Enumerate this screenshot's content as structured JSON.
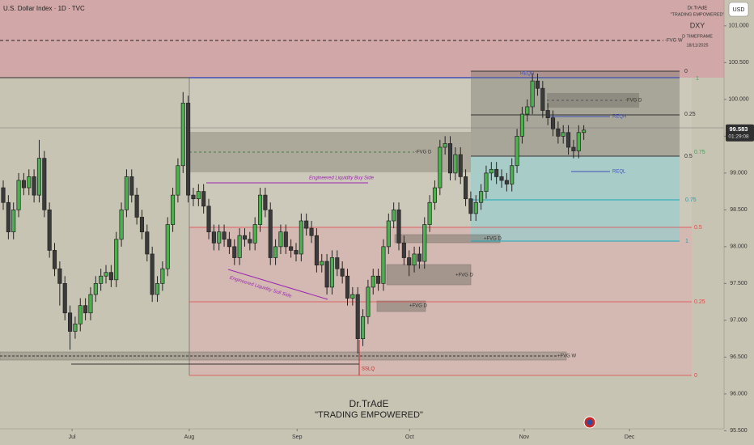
{
  "header": {
    "symbol": "U.S. Dollar Index · 1D · TVC",
    "currency": "USD"
  },
  "watermark": {
    "top": [
      "Dr.TrAdE",
      "\"TRADING EMPOWERED\"",
      "DXY",
      "D TIMEFRAME",
      "18/11/2025"
    ],
    "bottom": [
      "Dr.TrAdE",
      "\"TRADING EMPOWERED\""
    ]
  },
  "chart_data": {
    "type": "candlestick",
    "up_color": "#4caf50",
    "down_color": "#3b3b3b",
    "grid": false,
    "series": [
      {
        "open": [
          98.8,
          98.6,
          98.2,
          98.5,
          98.9,
          98.8,
          98.95,
          98.7,
          99.2,
          98.5,
          97.95,
          97.7,
          97.5,
          97.1,
          96.85,
          96.95,
          97.2,
          97.1,
          97.35,
          97.5,
          97.6,
          97.65,
          97.55,
          98.1,
          98.5,
          98.95,
          98.7,
          98.4,
          98.2,
          97.9,
          97.35,
          97.5,
          97.7,
          98.3,
          98.7,
          99.1,
          99.95,
          98.7,
          98.65,
          98.75,
          98.55,
          98.2,
          98.05,
          98.2,
          98.1,
          98.0,
          97.85,
          98.15,
          98.1,
          98.05,
          98.3,
          98.7,
          98.5,
          97.85,
          98.0,
          98.2,
          98.0,
          97.95,
          97.9,
          98.35,
          98.25,
          98.15,
          97.75,
          97.8,
          97.45,
          97.85,
          97.7,
          97.6,
          97.3,
          97.35,
          96.75,
          97.05,
          97.45,
          97.6,
          97.5,
          98.0,
          98.35,
          98.5,
          98.05,
          97.85,
          97.75,
          97.9,
          97.8,
          98.3,
          98.6,
          98.8,
          99.35,
          99.4,
          99.0,
          99.25,
          98.95,
          98.65,
          98.45,
          98.6,
          98.75,
          99.0,
          99.05,
          98.95,
          98.9,
          98.85,
          99.1,
          99.5,
          99.8,
          99.9,
          100.25,
          100.15,
          99.85,
          99.75,
          99.6,
          99.5,
          99.55,
          99.35,
          99.3,
          99.55
        ],
        "high": [
          98.9,
          98.7,
          98.6,
          99.0,
          99.0,
          99.05,
          99.05,
          99.45,
          99.3,
          98.6,
          98.05,
          97.8,
          97.6,
          97.2,
          97.05,
          97.3,
          97.3,
          97.45,
          97.6,
          97.7,
          97.75,
          97.75,
          98.2,
          98.6,
          99.05,
          99.05,
          98.8,
          98.5,
          98.3,
          98.0,
          97.6,
          97.8,
          98.4,
          98.8,
          99.2,
          100.1,
          100.05,
          98.8,
          98.85,
          98.85,
          98.65,
          98.3,
          98.3,
          98.3,
          98.2,
          98.1,
          98.25,
          98.25,
          98.2,
          98.4,
          98.8,
          98.8,
          98.6,
          98.1,
          98.3,
          98.3,
          98.1,
          98.05,
          98.45,
          98.45,
          98.35,
          98.25,
          97.9,
          97.9,
          97.95,
          97.95,
          97.8,
          97.7,
          97.45,
          97.45,
          97.15,
          97.55,
          97.7,
          97.7,
          98.1,
          98.45,
          98.6,
          98.6,
          98.15,
          97.95,
          98.0,
          98.0,
          98.4,
          98.7,
          98.9,
          99.45,
          99.5,
          99.5,
          99.35,
          99.35,
          99.05,
          98.75,
          98.7,
          98.85,
          99.1,
          99.15,
          99.15,
          99.05,
          99.0,
          99.2,
          99.6,
          99.9,
          100.0,
          100.35,
          100.35,
          100.25,
          99.95,
          99.85,
          99.7,
          99.65,
          99.65,
          99.45,
          99.65,
          99.65
        ],
        "low": [
          98.5,
          98.1,
          98.1,
          98.4,
          98.7,
          98.7,
          98.6,
          98.6,
          98.4,
          97.85,
          97.6,
          97.2,
          97.0,
          96.6,
          96.75,
          96.85,
          97.0,
          97.0,
          97.25,
          97.4,
          97.5,
          97.45,
          97.45,
          98.0,
          98.4,
          98.6,
          98.3,
          98.1,
          97.8,
          97.25,
          97.25,
          97.4,
          97.6,
          98.2,
          98.6,
          99.0,
          98.6,
          98.55,
          98.55,
          98.45,
          98.1,
          97.95,
          97.95,
          98.0,
          97.9,
          97.75,
          97.75,
          98.0,
          97.95,
          97.95,
          98.2,
          98.4,
          97.75,
          97.75,
          97.9,
          97.9,
          97.85,
          97.8,
          97.8,
          98.15,
          98.05,
          97.65,
          97.65,
          97.35,
          97.35,
          97.6,
          97.5,
          97.2,
          97.2,
          96.55,
          96.65,
          96.95,
          97.35,
          97.4,
          97.4,
          97.9,
          98.25,
          97.95,
          97.75,
          97.6,
          97.65,
          97.7,
          97.7,
          98.2,
          98.5,
          98.7,
          99.25,
          98.9,
          98.9,
          98.85,
          98.55,
          98.35,
          98.35,
          98.5,
          98.65,
          98.9,
          98.85,
          98.8,
          98.75,
          98.75,
          99.0,
          99.4,
          99.7,
          99.8,
          100.05,
          99.75,
          99.65,
          99.5,
          99.4,
          99.4,
          99.25,
          99.2,
          99.2,
          99.45
        ],
        "close": [
          98.6,
          98.2,
          98.5,
          98.9,
          98.8,
          98.95,
          98.7,
          99.2,
          98.5,
          97.95,
          97.7,
          97.5,
          97.1,
          96.85,
          96.95,
          97.2,
          97.1,
          97.35,
          97.5,
          97.6,
          97.65,
          97.55,
          98.1,
          98.5,
          98.95,
          98.7,
          98.4,
          98.2,
          97.9,
          97.35,
          97.5,
          97.7,
          98.3,
          98.7,
          99.1,
          99.95,
          98.7,
          98.65,
          98.75,
          98.55,
          98.2,
          98.05,
          98.2,
          98.1,
          98.0,
          97.85,
          98.15,
          98.1,
          98.05,
          98.3,
          98.7,
          98.5,
          97.85,
          98.0,
          98.2,
          98.0,
          97.95,
          97.9,
          98.35,
          98.25,
          98.15,
          97.75,
          97.8,
          97.45,
          97.85,
          97.7,
          97.6,
          97.3,
          97.35,
          96.75,
          97.05,
          97.45,
          97.6,
          97.5,
          98.0,
          98.35,
          98.5,
          98.05,
          97.85,
          97.75,
          97.9,
          97.8,
          98.3,
          98.6,
          98.8,
          99.35,
          99.4,
          99.0,
          99.25,
          98.95,
          98.65,
          98.45,
          98.6,
          98.75,
          99.0,
          99.05,
          98.95,
          98.9,
          98.85,
          99.1,
          99.5,
          99.8,
          99.9,
          100.25,
          100.15,
          99.85,
          99.75,
          99.6,
          99.5,
          99.55,
          99.35,
          99.3,
          99.55,
          99.583
        ]
      }
    ],
    "xlim": [
      -0.63,
      140.3
    ],
    "xticks": [
      {
        "value": 13.4,
        "label": "Jul"
      },
      {
        "value": 36.2,
        "label": "Aug"
      },
      {
        "value": 57.2,
        "label": "Sep"
      },
      {
        "value": 79.1,
        "label": "Oct"
      },
      {
        "value": 101.4,
        "label": "Nov"
      },
      {
        "value": 121.9,
        "label": "Dec"
      }
    ],
    "ylim": [
      95.46,
      101.35
    ],
    "yticks": [
      {
        "value": 101,
        "label": "101.000"
      },
      {
        "value": 100.5,
        "label": "100.500"
      },
      {
        "value": 100,
        "label": "100.000"
      },
      {
        "value": 99.5,
        "label": "99.500"
      },
      {
        "value": 99,
        "label": "99.000"
      },
      {
        "value": 98.5,
        "label": "98.500"
      },
      {
        "value": 98,
        "label": "98.000"
      },
      {
        "value": 97.5,
        "label": "97.500"
      },
      {
        "value": 97,
        "label": "97.000"
      },
      {
        "value": 96.5,
        "label": "96.500"
      },
      {
        "value": 96,
        "label": "96.000"
      },
      {
        "value": 95.5,
        "label": "95.500"
      }
    ],
    "last_price": 99.583,
    "countdown": "01:29:08",
    "annotations": [
      "-FVG W",
      "-FVG D",
      "Engineered Liquidity Buy Side",
      "Engineered Liquidity Sell Side",
      "-FVG D",
      "REQH",
      "REQH",
      "REQL",
      "+FVG D",
      "+FVG D",
      "+FVG D",
      "+FVG W",
      "SSLQ",
      "0",
      "0.25",
      "0.5",
      "1",
      "0.75",
      "0.75",
      "1",
      "0.5",
      "0.25",
      "0"
    ]
  }
}
